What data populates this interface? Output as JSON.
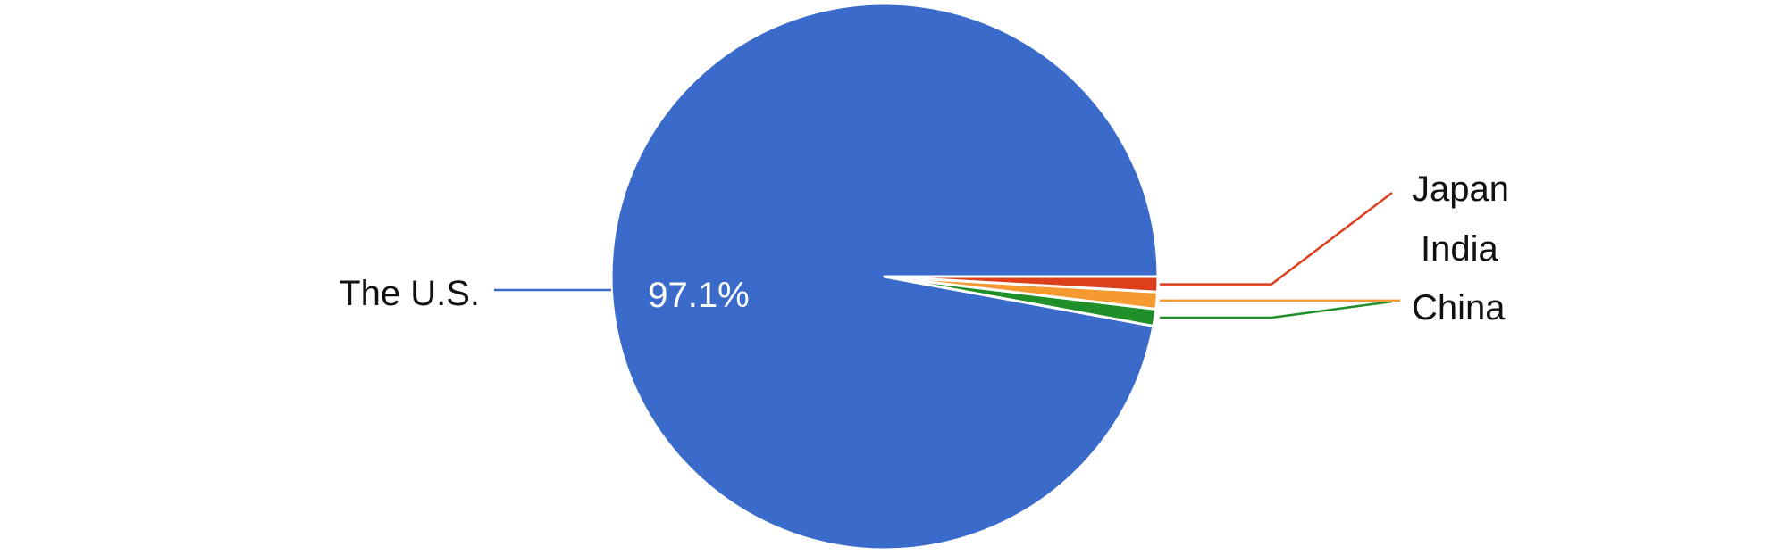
{
  "chart_data": {
    "type": "pie",
    "title": "",
    "categories": [
      "The U.S.",
      "China",
      "India",
      "Japan"
    ],
    "values": [
      97.1,
      1.0,
      1.0,
      0.9
    ],
    "colors": [
      "#3a6bcb",
      "#1f8f2a",
      "#f59a31",
      "#dc3f1c"
    ],
    "data_labels": [
      "97.1%",
      "",
      "",
      ""
    ],
    "legend": "none"
  }
}
